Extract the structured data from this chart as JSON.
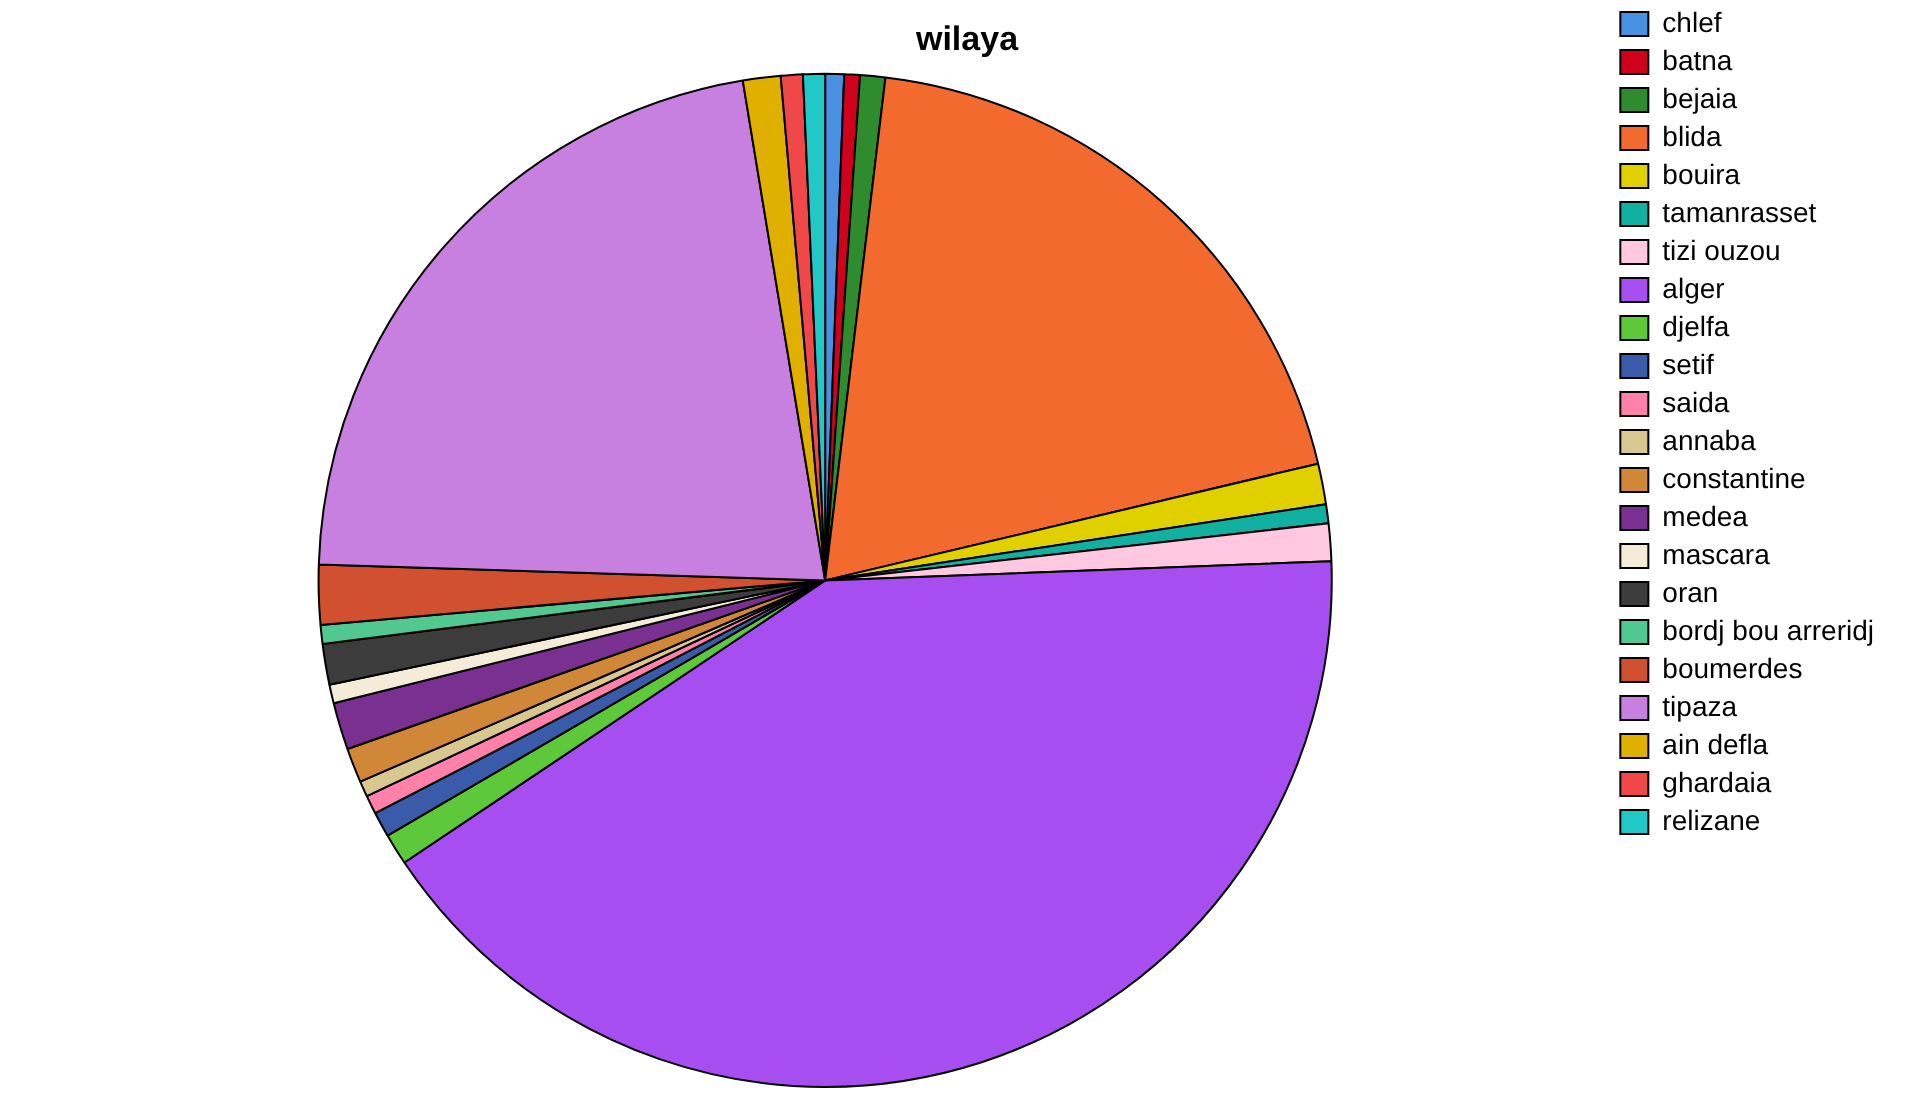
{
  "chart_data": {
    "type": "pie",
    "title": "wilaya",
    "legend": "right",
    "categories": [
      "chlef",
      "batna",
      "bejaia",
      "blida",
      "bouira",
      "tamanrasset",
      "tizi ouzou",
      "alger",
      "djelfa",
      "setif",
      "saida",
      "annaba",
      "constantine",
      "medea",
      "mascara",
      "oran",
      "bordj bou arreridj",
      "boumerdes",
      "tipaza",
      "ain defla",
      "ghardaia",
      "relizane"
    ],
    "values": [
      0.6,
      0.5,
      0.8,
      19.4,
      1.3,
      0.6,
      1.2,
      41.2,
      1.0,
      0.8,
      0.6,
      0.5,
      1.1,
      1.5,
      0.6,
      1.3,
      0.6,
      1.9,
      21.9,
      1.2,
      0.7,
      0.7
    ],
    "colors": [
      "#4a90e2",
      "#d0021b",
      "#2e8b2e",
      "#f26a2e",
      "#e0d000",
      "#12b0a0",
      "#ffc8e0",
      "#a64ef0",
      "#5cc83a",
      "#3a5aaa",
      "#ff80a8",
      "#d8c890",
      "#d08838",
      "#7a3090",
      "#f4ecd8",
      "#3c3c3c",
      "#50c890",
      "#d05030",
      "#c880e0",
      "#e0b000",
      "#f04848",
      "#20c8c8"
    ]
  }
}
